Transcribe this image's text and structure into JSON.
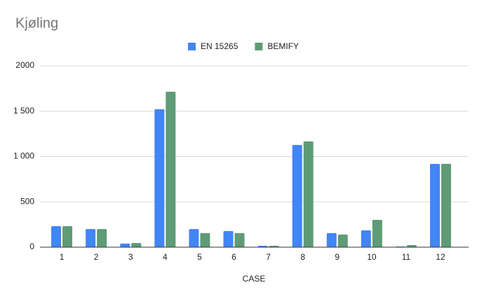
{
  "chart_data": {
    "type": "bar",
    "title": "Kjøling",
    "x_label": "CASE",
    "categories": [
      "1",
      "2",
      "3",
      "4",
      "5",
      "6",
      "7",
      "8",
      "9",
      "10",
      "11",
      "12"
    ],
    "series": [
      {
        "name": "EN 15265",
        "color": "#4285f4",
        "values": [
          232,
          200,
          40,
          1521,
          200,
          178,
          15,
          1127,
          155,
          185,
          8,
          919
        ]
      },
      {
        "name": "BEMIFY",
        "color": "#5e9b76",
        "values": [
          232,
          200,
          46,
          1714,
          155,
          155,
          15,
          1166,
          139,
          301,
          23,
          919
        ]
      }
    ],
    "ylim": [
      0,
      2000
    ],
    "yticks": [
      0,
      500,
      {
        "value": 1000,
        "label": "1 000"
      },
      {
        "value": 1500,
        "label": "1 500"
      },
      2000
    ],
    "grid": true,
    "legend": "top"
  }
}
